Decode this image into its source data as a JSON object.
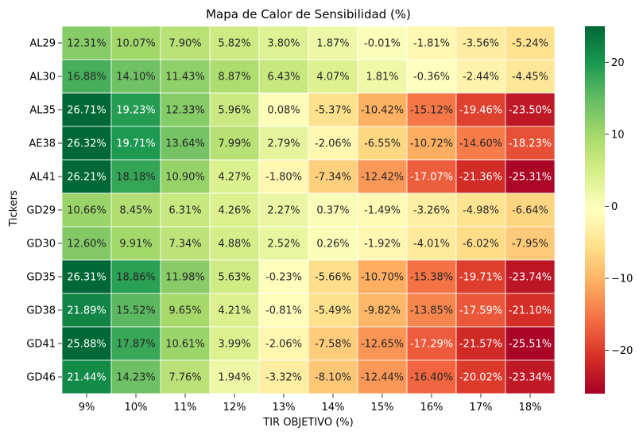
{
  "chart_data": {
    "type": "heatmap",
    "title": "Mapa de Calor de Sensibilidad (%)",
    "xlabel": "TIR OBJETIVO (%)",
    "ylabel": "Tickers",
    "colormap": "RdYlGn",
    "vmin": -26,
    "vmax": 25,
    "colorbar_ticks": [
      20,
      10,
      0,
      -10,
      -20
    ],
    "x_categories": [
      "9%",
      "10%",
      "11%",
      "12%",
      "13%",
      "14%",
      "15%",
      "16%",
      "17%",
      "18%"
    ],
    "y_categories": [
      "AL29",
      "AL30",
      "AL35",
      "AE38",
      "AL41",
      "GD29",
      "GD30",
      "GD35",
      "GD38",
      "GD41",
      "GD46"
    ],
    "values": [
      [
        12.31,
        10.07,
        7.9,
        5.82,
        3.8,
        1.87,
        -0.01,
        -1.81,
        -3.56,
        -5.24
      ],
      [
        16.88,
        14.1,
        11.43,
        8.87,
        6.43,
        4.07,
        1.81,
        -0.36,
        -2.44,
        -4.45
      ],
      [
        26.71,
        19.23,
        12.33,
        5.96,
        0.08,
        -5.37,
        -10.42,
        -15.12,
        -19.46,
        -23.5
      ],
      [
        26.32,
        19.71,
        13.64,
        7.99,
        2.79,
        -2.06,
        -6.55,
        -10.72,
        -14.6,
        -18.23
      ],
      [
        26.21,
        18.18,
        10.9,
        4.27,
        -1.8,
        -7.34,
        -12.42,
        -17.07,
        -21.36,
        -25.31
      ],
      [
        10.66,
        8.45,
        6.31,
        4.26,
        2.27,
        0.37,
        -1.49,
        -3.26,
        -4.98,
        -6.64
      ],
      [
        12.6,
        9.91,
        7.34,
        4.88,
        2.52,
        0.26,
        -1.92,
        -4.01,
        -6.02,
        -7.95
      ],
      [
        26.31,
        18.86,
        11.98,
        5.63,
        -0.23,
        -5.66,
        -10.7,
        -15.38,
        -19.71,
        -23.74
      ],
      [
        21.89,
        15.52,
        9.65,
        4.21,
        -0.81,
        -5.49,
        -9.82,
        -13.85,
        -17.59,
        -21.1
      ],
      [
        25.88,
        17.87,
        10.61,
        3.99,
        -2.06,
        -7.58,
        -12.65,
        -17.29,
        -21.57,
        -25.51
      ],
      [
        21.44,
        14.23,
        7.76,
        1.94,
        -3.32,
        -8.1,
        -12.44,
        -16.4,
        -20.02,
        -23.34
      ]
    ]
  }
}
